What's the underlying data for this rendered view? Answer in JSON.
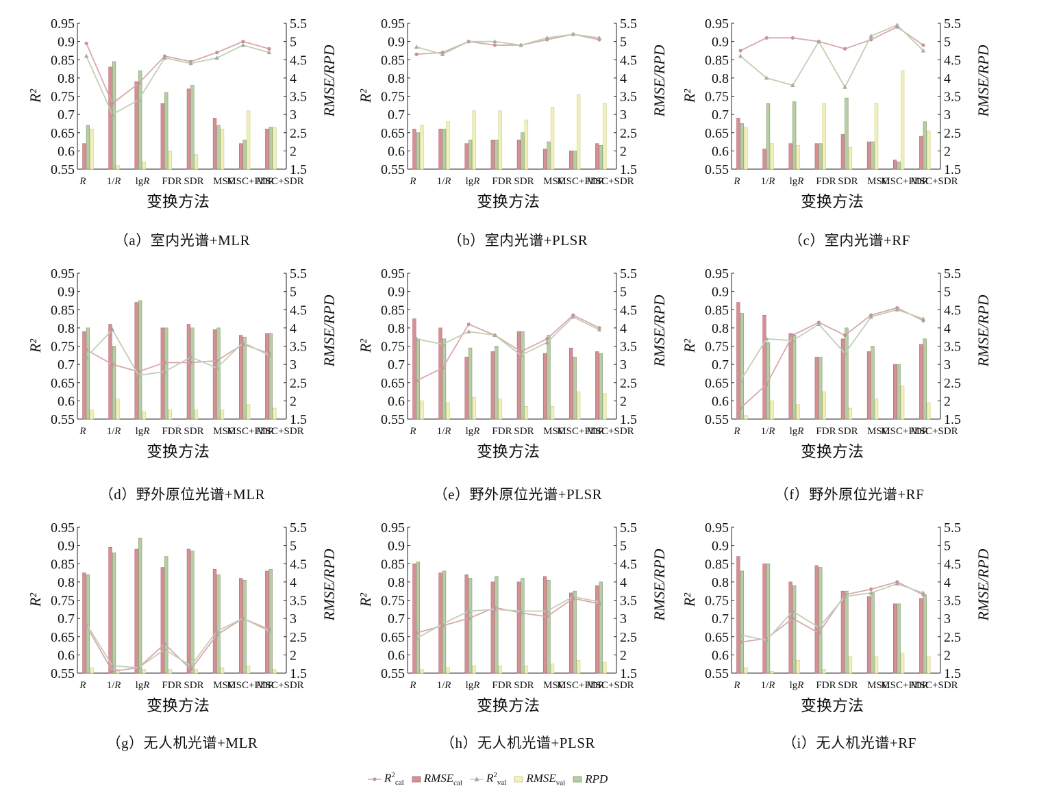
{
  "xlabel": "变换方法",
  "ylabel_left": "R²",
  "ylabel_right": "RMSE/RPD",
  "categories": [
    "R",
    "1/R",
    "lgR",
    "FDR",
    "SDR",
    "MSC",
    "MSC+FDR",
    "MSC+SDR"
  ],
  "left_ticks": [
    "0.55",
    "0.6",
    "0.65",
    "0.7",
    "0.75",
    "0.8",
    "0.85",
    "0.9",
    "0.95"
  ],
  "right_ticks": [
    "1.5",
    "2",
    "2.5",
    "3",
    "3.5",
    "4",
    "4.5",
    "5",
    "5.5"
  ],
  "colors": {
    "r2_cal": "#d8a8ae",
    "rmse_cal": "#d98e96",
    "r2_val": "#c2cfb2",
    "rmse_val": "#f2f2b6",
    "rpd": "#b8cda6"
  },
  "legend": {
    "r2_cal": {
      "base": "R",
      "sup": "2",
      "sub": "cal"
    },
    "rmse_cal": {
      "base": "RMSE",
      "sub": "cal"
    },
    "r2_val": {
      "base": "R",
      "sup": "2",
      "sub": "val"
    },
    "rmse_val": {
      "base": "RMSE",
      "sub": "val"
    },
    "rpd": {
      "base": "RPD"
    }
  },
  "chart_data": [
    {
      "type": "bar+line",
      "caption": "（a）室内光谱+MLR",
      "ylim_left": [
        0.55,
        0.95
      ],
      "ylim_right": [
        1.5,
        5.5
      ],
      "series": [
        {
          "name": "R²cal",
          "axis": "left",
          "values": [
            0.895,
            0.73,
            0.785,
            0.86,
            0.845,
            0.87,
            0.9,
            0.88
          ]
        },
        {
          "name": "R²val",
          "axis": "left",
          "values": [
            0.86,
            0.7,
            0.74,
            0.855,
            0.84,
            0.855,
            0.89,
            0.87
          ]
        },
        {
          "name": "RMSEcal",
          "axis": "right",
          "values": [
            2.2,
            4.3,
            3.9,
            3.3,
            3.7,
            2.9,
            2.2,
            2.6
          ]
        },
        {
          "name": "RPD",
          "axis": "right",
          "values": [
            2.7,
            4.45,
            4.2,
            3.6,
            3.8,
            2.7,
            2.3,
            2.65
          ]
        },
        {
          "name": "RMSEval",
          "axis": "right",
          "values": [
            2.6,
            1.6,
            1.7,
            2.0,
            1.9,
            2.6,
            3.1,
            2.65
          ]
        }
      ]
    },
    {
      "type": "bar+line",
      "caption": "（b）室内光谱+PLSR",
      "ylim_left": [
        0.55,
        0.95
      ],
      "ylim_right": [
        1.5,
        5.5
      ],
      "series": [
        {
          "name": "R²cal",
          "axis": "left",
          "values": [
            0.865,
            0.87,
            0.9,
            0.89,
            0.89,
            0.905,
            0.92,
            0.905
          ]
        },
        {
          "name": "R²val",
          "axis": "left",
          "values": [
            0.885,
            0.865,
            0.9,
            0.9,
            0.89,
            0.91,
            0.92,
            0.91
          ]
        },
        {
          "name": "RMSEcal",
          "axis": "right",
          "values": [
            2.6,
            2.6,
            2.2,
            2.3,
            2.3,
            2.05,
            2.0,
            2.2
          ]
        },
        {
          "name": "RPD",
          "axis": "right",
          "values": [
            2.5,
            2.6,
            2.3,
            2.3,
            2.5,
            2.25,
            2.0,
            2.15
          ]
        },
        {
          "name": "RMSEval",
          "axis": "right",
          "values": [
            2.7,
            2.8,
            3.1,
            3.1,
            2.85,
            3.2,
            3.55,
            3.3
          ]
        }
      ]
    },
    {
      "type": "bar+line",
      "caption": "（c）室内光谱+RF",
      "ylim_left": [
        0.55,
        0.95
      ],
      "ylim_right": [
        1.5,
        5.5
      ],
      "series": [
        {
          "name": "R²cal",
          "axis": "left",
          "values": [
            0.875,
            0.91,
            0.91,
            0.9,
            0.88,
            0.905,
            0.94,
            0.89
          ]
        },
        {
          "name": "R²val",
          "axis": "left",
          "values": [
            0.86,
            0.8,
            0.78,
            0.9,
            0.775,
            0.915,
            0.945,
            0.875
          ]
        },
        {
          "name": "RMSEcal",
          "axis": "right",
          "values": [
            2.9,
            2.05,
            2.2,
            2.2,
            2.45,
            2.25,
            1.75,
            2.4
          ]
        },
        {
          "name": "RPD",
          "axis": "right",
          "values": [
            2.75,
            3.3,
            3.35,
            2.2,
            3.45,
            2.25,
            1.7,
            2.8
          ]
        },
        {
          "name": "RMSEval",
          "axis": "right",
          "values": [
            2.65,
            2.2,
            2.15,
            3.3,
            2.1,
            3.3,
            4.2,
            2.55
          ]
        }
      ]
    },
    {
      "type": "bar+line",
      "caption": "（d）野外原位光谱+MLR",
      "ylim_left": [
        0.55,
        0.95
      ],
      "ylim_right": [
        1.5,
        5.5
      ],
      "series": [
        {
          "name": "R²cal",
          "axis": "left",
          "values": [
            0.74,
            0.7,
            0.68,
            0.705,
            0.705,
            0.71,
            0.755,
            0.73
          ]
        },
        {
          "name": "R²val",
          "axis": "left",
          "values": [
            0.72,
            0.795,
            0.67,
            0.68,
            0.72,
            0.69,
            0.76,
            0.725
          ]
        },
        {
          "name": "RMSEcal",
          "axis": "right",
          "values": [
            3.9,
            4.1,
            4.7,
            4.0,
            4.1,
            3.95,
            3.8,
            3.85
          ]
        },
        {
          "name": "RPD",
          "axis": "right",
          "values": [
            4.0,
            3.5,
            4.75,
            4.0,
            4.0,
            4.0,
            3.75,
            3.85
          ]
        },
        {
          "name": "RMSEval",
          "axis": "right",
          "values": [
            1.75,
            2.05,
            1.7,
            1.75,
            1.75,
            1.75,
            1.9,
            1.8
          ]
        }
      ]
    },
    {
      "type": "bar+line",
      "caption": "（e）野外原位光谱+PLSR",
      "ylim_left": [
        0.55,
        0.95
      ],
      "ylim_right": [
        1.5,
        5.5
      ],
      "series": [
        {
          "name": "R²cal",
          "axis": "left",
          "values": [
            0.655,
            0.69,
            0.81,
            0.78,
            0.735,
            0.77,
            0.835,
            0.8
          ]
        },
        {
          "name": "R²val",
          "axis": "left",
          "values": [
            0.77,
            0.755,
            0.79,
            0.78,
            0.725,
            0.76,
            0.83,
            0.795
          ]
        },
        {
          "name": "RMSEcal",
          "axis": "right",
          "values": [
            4.25,
            4.0,
            3.2,
            3.35,
            3.9,
            3.3,
            3.45,
            3.35
          ]
        },
        {
          "name": "RPD",
          "axis": "right",
          "values": [
            3.7,
            3.7,
            3.45,
            3.5,
            3.9,
            3.8,
            3.2,
            3.3
          ]
        },
        {
          "name": "RMSEval",
          "axis": "right",
          "values": [
            2.0,
            1.95,
            2.1,
            2.05,
            1.85,
            1.85,
            2.25,
            2.2
          ]
        }
      ]
    },
    {
      "type": "bar+line",
      "caption": "（f）野外原位光谱+RF",
      "ylim_left": [
        0.55,
        0.95
      ],
      "ylim_right": [
        1.5,
        5.5
      ],
      "series": [
        {
          "name": "R²cal",
          "axis": "left",
          "values": [
            0.58,
            0.645,
            0.78,
            0.815,
            0.78,
            0.835,
            0.855,
            0.82
          ]
        },
        {
          "name": "R²val",
          "axis": "left",
          "values": [
            0.655,
            0.77,
            0.765,
            0.81,
            0.73,
            0.83,
            0.85,
            0.825
          ]
        },
        {
          "name": "RMSEcal",
          "axis": "right",
          "values": [
            4.7,
            4.35,
            3.85,
            3.2,
            3.7,
            3.35,
            3.0,
            3.55
          ]
        },
        {
          "name": "RPD",
          "axis": "right",
          "values": [
            4.4,
            3.6,
            3.8,
            3.2,
            4.0,
            3.5,
            3.0,
            3.7
          ]
        },
        {
          "name": "RMSEval",
          "axis": "right",
          "values": [
            1.6,
            2.0,
            1.9,
            2.25,
            1.8,
            2.05,
            2.4,
            1.95
          ]
        }
      ]
    },
    {
      "type": "bar+line",
      "caption": "（g）无人机光谱+MLR",
      "ylim_left": [
        0.55,
        0.95
      ],
      "ylim_right": [
        1.5,
        5.5
      ],
      "series": [
        {
          "name": "R²cal",
          "axis": "left",
          "values": [
            0.68,
            0.555,
            0.565,
            0.63,
            0.56,
            0.655,
            0.7,
            0.67
          ]
        },
        {
          "name": "R²val",
          "axis": "left",
          "values": [
            0.685,
            0.57,
            0.565,
            0.615,
            0.57,
            0.665,
            0.7,
            0.665
          ]
        },
        {
          "name": "RMSEcal",
          "axis": "right",
          "values": [
            4.25,
            4.95,
            4.9,
            4.4,
            4.9,
            4.35,
            4.1,
            4.3
          ]
        },
        {
          "name": "RPD",
          "axis": "right",
          "values": [
            4.2,
            4.8,
            5.2,
            4.7,
            4.85,
            4.2,
            4.05,
            4.35
          ]
        },
        {
          "name": "RMSEval",
          "axis": "right",
          "values": [
            1.65,
            1.6,
            1.6,
            1.6,
            1.6,
            1.65,
            1.7,
            1.6
          ]
        }
      ]
    },
    {
      "type": "bar+line",
      "caption": "（h）无人机光谱+PLSR",
      "ylim_left": [
        0.55,
        0.95
      ],
      "ylim_right": [
        1.5,
        5.5
      ],
      "series": [
        {
          "name": "R²cal",
          "axis": "left",
          "values": [
            0.66,
            0.68,
            0.7,
            0.73,
            0.715,
            0.705,
            0.755,
            0.74
          ]
        },
        {
          "name": "R²val",
          "axis": "left",
          "values": [
            0.645,
            0.685,
            0.72,
            0.725,
            0.72,
            0.72,
            0.76,
            0.745
          ]
        },
        {
          "name": "RMSEcal",
          "axis": "right",
          "values": [
            4.5,
            4.25,
            4.2,
            4.0,
            4.0,
            4.15,
            3.7,
            3.9
          ]
        },
        {
          "name": "RPD",
          "axis": "right",
          "values": [
            4.55,
            4.3,
            4.1,
            4.15,
            4.1,
            4.05,
            3.75,
            4.0
          ]
        },
        {
          "name": "RMSEval",
          "axis": "right",
          "values": [
            1.6,
            1.65,
            1.7,
            1.7,
            1.7,
            1.75,
            1.85,
            1.8
          ]
        }
      ]
    },
    {
      "type": "bar+line",
      "caption": "（i）无人机光谱+RF",
      "ylim_left": [
        0.55,
        0.95
      ],
      "ylim_right": [
        1.5,
        5.5
      ],
      "series": [
        {
          "name": "R²cal",
          "axis": "left",
          "values": [
            0.635,
            0.645,
            0.7,
            0.66,
            0.765,
            0.78,
            0.8,
            0.765
          ]
        },
        {
          "name": "R²val",
          "axis": "left",
          "values": [
            0.655,
            0.64,
            0.72,
            0.675,
            0.76,
            0.77,
            0.795,
            0.77
          ]
        },
        {
          "name": "RMSEcal",
          "axis": "right",
          "values": [
            4.7,
            4.5,
            4.0,
            4.45,
            3.75,
            3.6,
            3.4,
            3.55
          ]
        },
        {
          "name": "RPD",
          "axis": "right",
          "values": [
            4.3,
            4.5,
            3.9,
            4.4,
            3.75,
            3.7,
            3.4,
            3.65
          ]
        },
        {
          "name": "RMSEval",
          "axis": "right",
          "values": [
            1.65,
            1.55,
            1.85,
            1.6,
            1.95,
            1.95,
            2.05,
            1.95
          ]
        }
      ]
    }
  ]
}
